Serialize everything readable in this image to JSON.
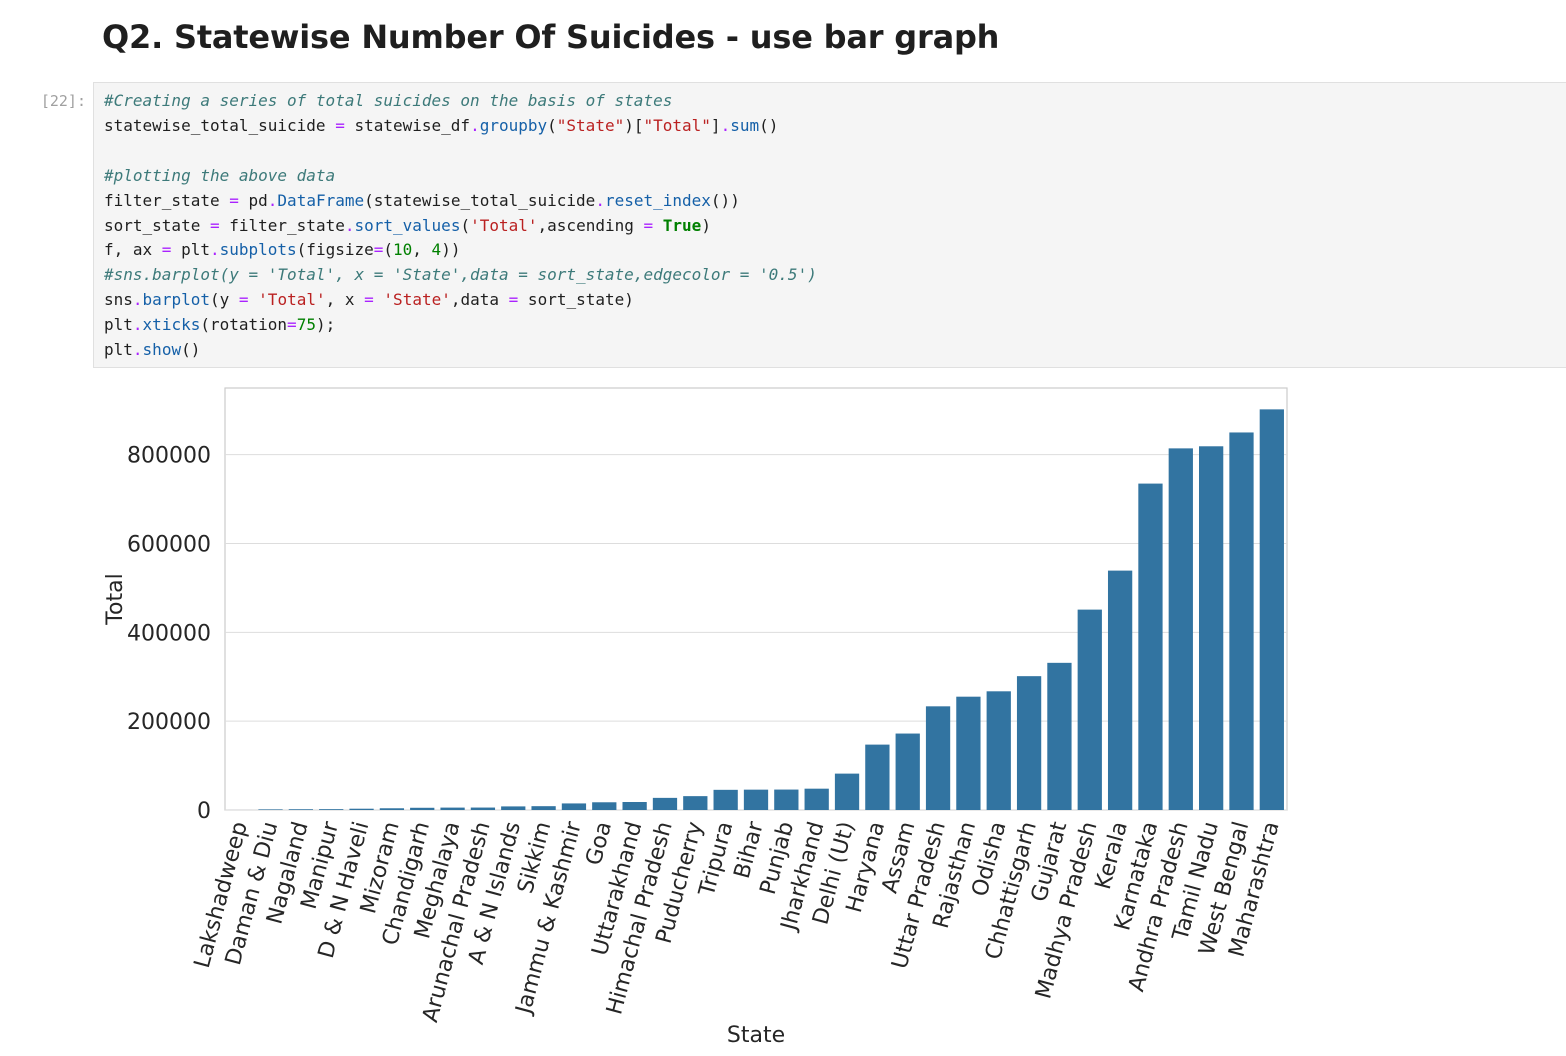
{
  "heading": "Q2. Statewise Number Of Suicides - use bar graph",
  "cell": {
    "prompt": "[22]:",
    "code_lines": [
      [
        [
          "cm",
          "#Creating a series of total suicides on the basis of states"
        ]
      ],
      [
        [
          "",
          "statewise_total_suicide "
        ],
        [
          "op",
          "="
        ],
        [
          "",
          " statewise_df"
        ],
        [
          "op",
          "."
        ],
        [
          "m",
          "groupby"
        ],
        [
          "",
          "("
        ],
        [
          "s",
          "\"State\""
        ],
        [
          "",
          ")["
        ],
        [
          "s",
          "\"Total\""
        ],
        [
          "",
          "]"
        ],
        [
          "op",
          "."
        ],
        [
          "m",
          "sum"
        ],
        [
          "",
          "()"
        ]
      ],
      [],
      [
        [
          "cm",
          "#plotting the above data"
        ]
      ],
      [
        [
          "",
          "filter_state "
        ],
        [
          "op",
          "="
        ],
        [
          "",
          " pd"
        ],
        [
          "op",
          "."
        ],
        [
          "m",
          "DataFrame"
        ],
        [
          "",
          "(statewise_total_suicide"
        ],
        [
          "op",
          "."
        ],
        [
          "m",
          "reset_index"
        ],
        [
          "",
          "())"
        ]
      ],
      [
        [
          "",
          "sort_state "
        ],
        [
          "op",
          "="
        ],
        [
          "",
          " filter_state"
        ],
        [
          "op",
          "."
        ],
        [
          "m",
          "sort_values"
        ],
        [
          "",
          "("
        ],
        [
          "s",
          "'Total'"
        ],
        [
          "",
          ",ascending "
        ],
        [
          "op",
          "="
        ],
        [
          "",
          " "
        ],
        [
          "kw",
          "True"
        ],
        [
          "",
          ")"
        ]
      ],
      [
        [
          "",
          "f, ax "
        ],
        [
          "op",
          "="
        ],
        [
          "",
          " plt"
        ],
        [
          "op",
          "."
        ],
        [
          "m",
          "subplots"
        ],
        [
          "",
          "(figsize"
        ],
        [
          "op",
          "="
        ],
        [
          "",
          "("
        ],
        [
          "n",
          "10"
        ],
        [
          "",
          ", "
        ],
        [
          "n",
          "4"
        ],
        [
          "",
          "))"
        ]
      ],
      [
        [
          "cm",
          "#sns.barplot(y = 'Total', x = 'State',data = sort_state,edgecolor = '0.5')"
        ]
      ],
      [
        [
          "",
          "sns"
        ],
        [
          "op",
          "."
        ],
        [
          "m",
          "barplot"
        ],
        [
          "",
          "(y "
        ],
        [
          "op",
          "="
        ],
        [
          "",
          " "
        ],
        [
          "s",
          "'Total'"
        ],
        [
          "",
          ", x "
        ],
        [
          "op",
          "="
        ],
        [
          "",
          " "
        ],
        [
          "s",
          "'State'"
        ],
        [
          "",
          ",data "
        ],
        [
          "op",
          "="
        ],
        [
          "",
          " sort_state)"
        ]
      ],
      [
        [
          "",
          "plt"
        ],
        [
          "op",
          "."
        ],
        [
          "m",
          "xticks"
        ],
        [
          "",
          "(rotation"
        ],
        [
          "op",
          "="
        ],
        [
          "n",
          "75"
        ],
        [
          "",
          ");"
        ]
      ],
      [
        [
          "",
          "plt"
        ],
        [
          "op",
          "."
        ],
        [
          "m",
          "show"
        ],
        [
          "",
          "()"
        ]
      ]
    ]
  },
  "chart_data": {
    "type": "bar",
    "title": "",
    "xlabel": "State",
    "ylabel": "Total",
    "ylim": [
      0,
      950000
    ],
    "yticks": [
      0,
      200000,
      400000,
      600000,
      800000
    ],
    "grid": "horizontal",
    "bar_color": "#3274a1",
    "categories": [
      "Lakshadweep",
      "Daman & Diu",
      "Nagaland",
      "Manipur",
      "D & N Haveli",
      "Mizoram",
      "Chandigarh",
      "Meghalaya",
      "Arunachal Pradesh",
      "A & N Islands",
      "Sikkim",
      "Jammu & Kashmir",
      "Goa",
      "Uttarakhand",
      "Himachal Pradesh",
      "Puducherry",
      "Tripura",
      "Bihar",
      "Punjab",
      "Jharkhand",
      "Delhi (Ut)",
      "Haryana",
      "Assam",
      "Uttar Pradesh",
      "Rajasthan",
      "Odisha",
      "Chhattisgarh",
      "Gujarat",
      "Madhya Pradesh",
      "Kerala",
      "Karnataka",
      "Andhra Pradesh",
      "Tamil Nadu",
      "West Bengal",
      "Maharashtra"
    ],
    "values": [
      50,
      1400,
      1700,
      1900,
      2900,
      3900,
      5000,
      5400,
      5500,
      8100,
      8600,
      14800,
      17400,
      18000,
      27300,
      31200,
      45400,
      45800,
      46000,
      48000,
      81900,
      147200,
      172100,
      233400,
      255100,
      267200,
      301300,
      331300,
      451100,
      538900,
      734800,
      814100,
      818800,
      849900,
      901900
    ]
  }
}
